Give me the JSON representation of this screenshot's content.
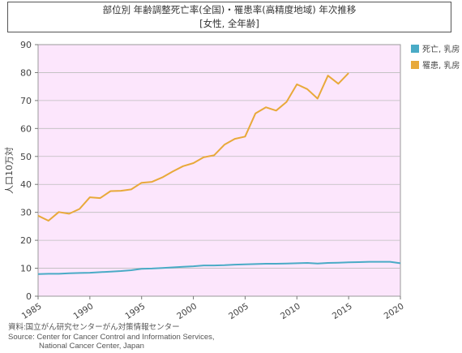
{
  "chart_data": {
    "type": "line",
    "title": "部位別 年齢調整死亡率(全国)・罹患率(高精度地域) 年次推移",
    "subtitle": "[女性, 全年齢]",
    "ylabel": "人口10万対",
    "xlabel": "",
    "xlim": [
      1985,
      2020
    ],
    "ylim": [
      0,
      90
    ],
    "x_ticks": [
      "1985",
      "1990",
      "1995",
      "2000",
      "2005",
      "2010",
      "2015",
      "2020"
    ],
    "y_ticks": [
      "0",
      "10",
      "20",
      "30",
      "40",
      "50",
      "60",
      "70",
      "80",
      "90"
    ],
    "grid": true,
    "legend_position": "right",
    "colors": {
      "plot_background": "#fce6fc",
      "mortality": "#4aabc6",
      "incidence": "#e8a93a"
    },
    "series": [
      {
        "name": "死亡, 乳房",
        "color": "#4aabc6",
        "x": [
          1985,
          1986,
          1987,
          1988,
          1989,
          1990,
          1991,
          1992,
          1993,
          1994,
          1995,
          1996,
          1997,
          1998,
          1999,
          2000,
          2001,
          2002,
          2003,
          2004,
          2005,
          2006,
          2007,
          2008,
          2009,
          2010,
          2011,
          2012,
          2013,
          2014,
          2015,
          2016,
          2017,
          2018,
          2019,
          2020
        ],
        "values": [
          7.9,
          8.0,
          8.0,
          8.2,
          8.3,
          8.4,
          8.6,
          8.8,
          9.0,
          9.3,
          9.8,
          9.9,
          10.1,
          10.3,
          10.5,
          10.7,
          11.0,
          11.0,
          11.1,
          11.3,
          11.4,
          11.5,
          11.6,
          11.6,
          11.7,
          11.8,
          11.9,
          11.7,
          11.9,
          12.0,
          12.1,
          12.2,
          12.3,
          12.3,
          12.3,
          11.8
        ]
      },
      {
        "name": "罹患, 乳房",
        "color": "#e8a93a",
        "x": [
          1985,
          1986,
          1987,
          1988,
          1989,
          1990,
          1991,
          1992,
          1993,
          1994,
          1995,
          1996,
          1997,
          1998,
          1999,
          2000,
          2001,
          2002,
          2003,
          2004,
          2005,
          2006,
          2007,
          2008,
          2009,
          2010,
          2011,
          2012,
          2013,
          2014,
          2015
        ],
        "values": [
          28.8,
          27.0,
          30.1,
          29.5,
          31.2,
          35.4,
          35.1,
          37.6,
          37.7,
          38.2,
          40.6,
          40.9,
          42.5,
          44.6,
          46.5,
          47.6,
          49.7,
          50.4,
          54.2,
          56.3,
          57.1,
          65.4,
          67.6,
          66.4,
          69.5,
          75.8,
          74.1,
          70.7,
          78.9,
          76.0,
          79.8
        ]
      }
    ]
  },
  "source": {
    "line1": "資料:国立がん研究センターがん対策情報センター",
    "line2": "Source: Center for Cancer Control and Information Services,",
    "line3": "National Cancer Center, Japan"
  }
}
